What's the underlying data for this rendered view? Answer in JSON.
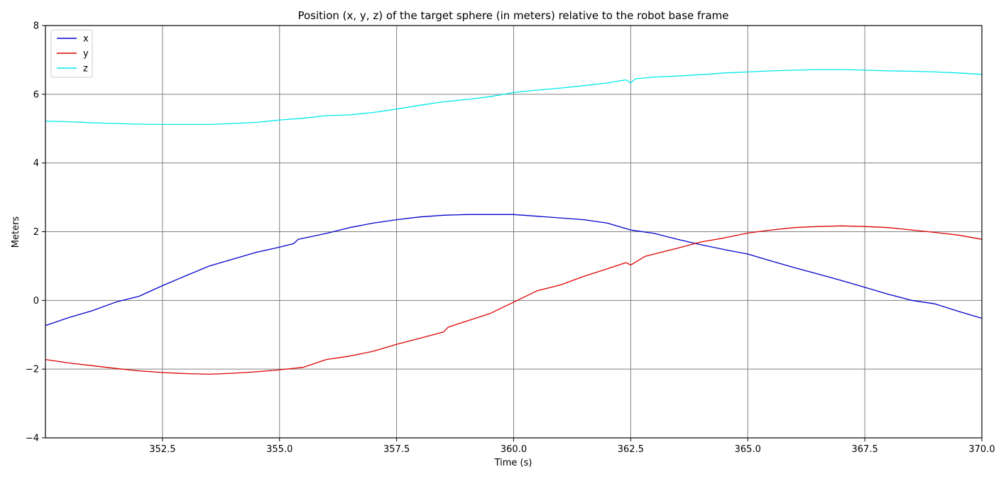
{
  "chart_data": {
    "type": "line",
    "title": "Position (x, y, z) of the target sphere (in meters) relative to the robot base frame",
    "xlabel": "Time (s)",
    "ylabel": "Meters",
    "xlim": [
      350.0,
      370.0
    ],
    "ylim": [
      -4,
      8
    ],
    "xticks": [
      352.5,
      355.0,
      357.5,
      360.0,
      362.5,
      365.0,
      367.5,
      370.0
    ],
    "xtick_labels": [
      "352.5",
      "355.0",
      "357.5",
      "360.0",
      "362.5",
      "365.0",
      "367.5",
      "370.0"
    ],
    "yticks": [
      -4,
      -2,
      0,
      2,
      4,
      6,
      8
    ],
    "ytick_labels": [
      "−4",
      "−2",
      "0",
      "2",
      "4",
      "6",
      "8"
    ],
    "grid": true,
    "legend": "top-left",
    "series": [
      {
        "name": "x",
        "color": "#0000cc",
        "x": [
          350.0,
          350.5,
          351.0,
          351.5,
          352.0,
          352.5,
          353.0,
          353.5,
          354.0,
          354.5,
          355.0,
          355.3,
          355.4,
          356.0,
          356.5,
          357.0,
          357.5,
          358.0,
          358.5,
          359.0,
          359.5,
          360.0,
          360.5,
          361.0,
          361.5,
          362.0,
          362.5,
          363.0,
          363.5,
          364.0,
          364.5,
          365.0,
          365.5,
          366.0,
          366.5,
          367.0,
          367.5,
          368.0,
          368.5,
          369.0,
          369.5,
          370.0
        ],
        "values": [
          -0.73,
          -0.5,
          -0.3,
          -0.05,
          0.12,
          0.43,
          0.72,
          1.0,
          1.2,
          1.4,
          1.55,
          1.65,
          1.78,
          1.95,
          2.12,
          2.25,
          2.35,
          2.43,
          2.48,
          2.5,
          2.5,
          2.5,
          2.45,
          2.4,
          2.35,
          2.25,
          2.05,
          1.95,
          1.78,
          1.62,
          1.48,
          1.35,
          1.15,
          0.95,
          0.77,
          0.58,
          0.38,
          0.18,
          0.0,
          -0.1,
          -0.32,
          -0.52
        ]
      },
      {
        "name": "y",
        "color": "#dd0000",
        "x": [
          350.0,
          350.5,
          351.0,
          351.5,
          352.0,
          352.5,
          353.0,
          353.5,
          354.0,
          354.5,
          355.0,
          355.5,
          356.0,
          356.5,
          357.0,
          357.5,
          358.0,
          358.5,
          358.6,
          359.0,
          359.5,
          360.0,
          360.5,
          361.0,
          361.5,
          362.0,
          362.4,
          362.5,
          362.8,
          363.0,
          363.5,
          364.0,
          364.5,
          365.0,
          365.5,
          366.0,
          366.5,
          367.0,
          367.5,
          368.0,
          368.5,
          369.0,
          369.5,
          370.0
        ],
        "values": [
          -1.72,
          -1.82,
          -1.9,
          -1.98,
          -2.05,
          -2.1,
          -2.13,
          -2.15,
          -2.12,
          -2.08,
          -2.02,
          -1.95,
          -1.72,
          -1.62,
          -1.48,
          -1.28,
          -1.1,
          -0.92,
          -0.78,
          -0.6,
          -0.38,
          -0.05,
          0.28,
          0.45,
          0.7,
          0.92,
          1.1,
          1.03,
          1.28,
          1.35,
          1.52,
          1.7,
          1.82,
          1.96,
          2.05,
          2.12,
          2.15,
          2.17,
          2.15,
          2.12,
          2.05,
          1.98,
          1.9,
          1.78
        ]
      },
      {
        "name": "z",
        "color": "#00e8e8",
        "x": [
          350.0,
          350.5,
          351.0,
          351.5,
          352.0,
          352.5,
          353.0,
          353.5,
          354.0,
          354.5,
          355.0,
          355.5,
          356.0,
          356.5,
          357.0,
          357.5,
          358.0,
          358.5,
          359.0,
          359.5,
          360.0,
          360.5,
          361.0,
          361.5,
          362.0,
          362.4,
          362.5,
          362.6,
          363.0,
          363.5,
          364.0,
          364.5,
          365.0,
          365.5,
          366.0,
          366.5,
          367.0,
          367.5,
          368.0,
          368.5,
          369.0,
          369.5,
          370.0
        ],
        "values": [
          5.22,
          5.2,
          5.17,
          5.15,
          5.13,
          5.12,
          5.12,
          5.12,
          5.15,
          5.18,
          5.25,
          5.3,
          5.38,
          5.4,
          5.47,
          5.57,
          5.68,
          5.78,
          5.85,
          5.93,
          6.05,
          6.12,
          6.18,
          6.25,
          6.33,
          6.42,
          6.33,
          6.45,
          6.5,
          6.53,
          6.57,
          6.62,
          6.65,
          6.68,
          6.7,
          6.72,
          6.72,
          6.7,
          6.68,
          6.67,
          6.65,
          6.62,
          6.58
        ]
      }
    ]
  }
}
